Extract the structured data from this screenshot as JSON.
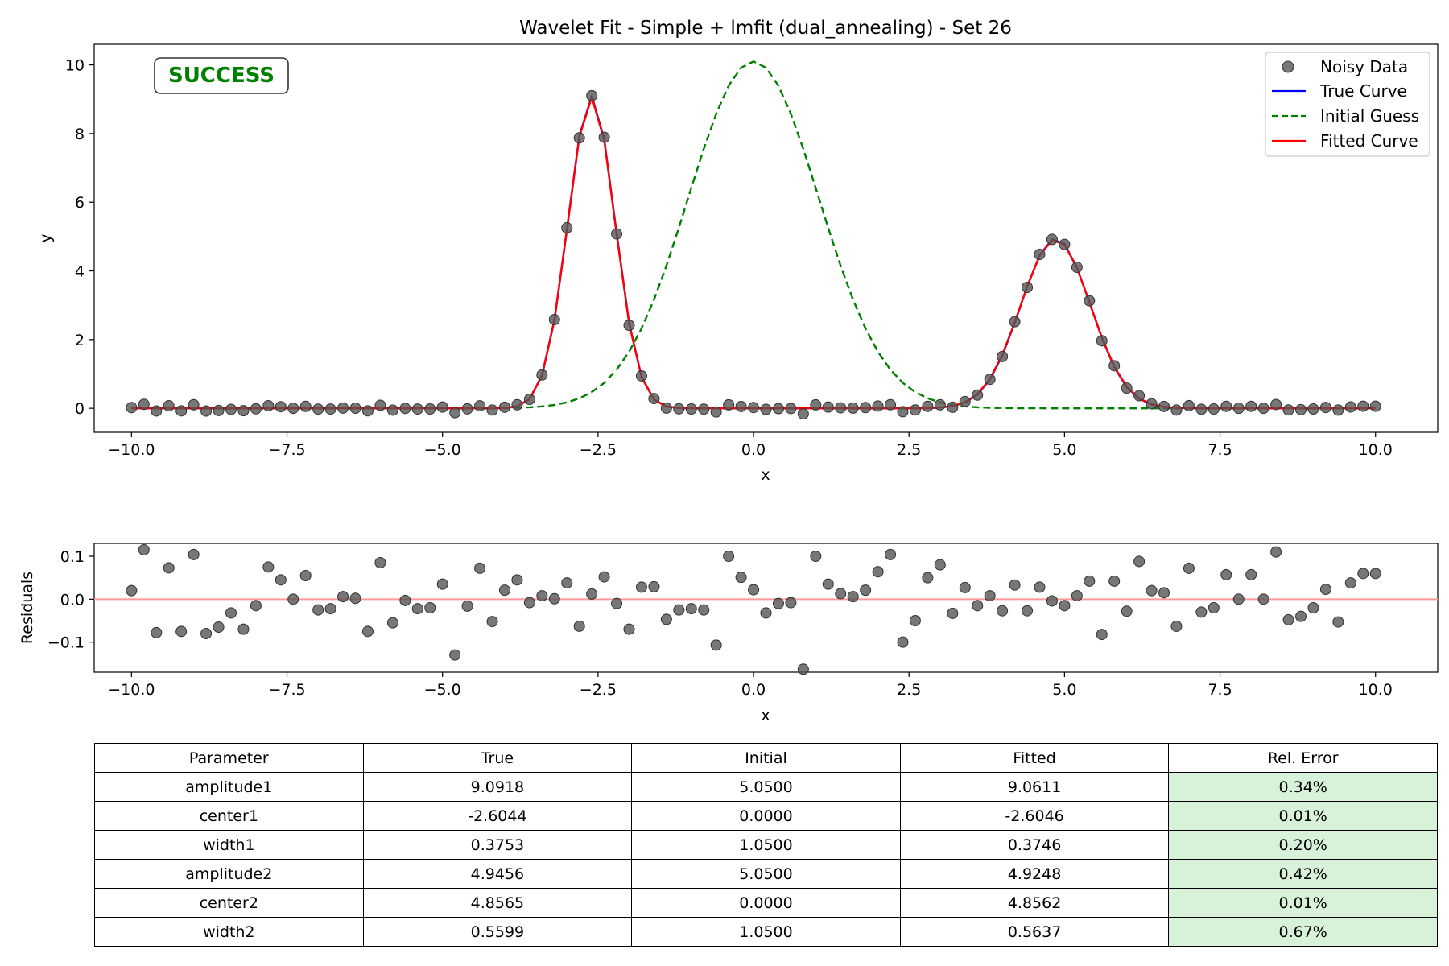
{
  "chart_data": [
    {
      "type": "scatter",
      "title": "Wavelet Fit - Simple + lmfit (dual_annealing) - Set 26",
      "xlabel": "x",
      "ylabel": "y",
      "xlim": [
        -10.6,
        11.0
      ],
      "ylim": [
        -0.7,
        10.6
      ],
      "xticks": [
        -10.0,
        -7.5,
        -5.0,
        -2.5,
        0.0,
        2.5,
        5.0,
        7.5,
        10.0
      ],
      "xtick_labels": [
        "−10.0",
        "−7.5",
        "−5.0",
        "−2.5",
        "0.0",
        "2.5",
        "5.0",
        "7.5",
        "10.0"
      ],
      "yticks": [
        0,
        2,
        4,
        6,
        8,
        10
      ],
      "ytick_labels": [
        "0",
        "2",
        "4",
        "6",
        "8",
        "10"
      ],
      "grid": false,
      "legend_position": "top-right",
      "annotation": {
        "text": "SUCCESS",
        "color": "#008000"
      },
      "series": [
        {
          "name": "Noisy Data",
          "kind": "points",
          "color": "#555555",
          "x_start": -10.0,
          "x_step": 0.2,
          "count": 101,
          "residuals": [
            0.02,
            0.115,
            -0.078,
            0.073,
            -0.075,
            0.104,
            -0.08,
            -0.065,
            -0.032,
            -0.07,
            -0.015,
            0.075,
            0.045,
            0.0,
            0.055,
            -0.025,
            -0.022,
            0.006,
            0.002,
            -0.075,
            0.085,
            -0.055,
            -0.003,
            -0.022,
            -0.02,
            0.035,
            -0.13,
            -0.016,
            0.072,
            -0.052,
            0.021,
            0.045,
            -0.008,
            0.008,
            0.001,
            0.038,
            -0.063,
            0.012,
            0.052,
            -0.01,
            -0.07,
            0.028,
            0.029,
            -0.047,
            -0.025,
            -0.022,
            -0.025,
            -0.107,
            0.1,
            0.051,
            0.022,
            -0.032,
            -0.01,
            -0.008,
            -0.163,
            0.1,
            0.035,
            0.013,
            0.006,
            0.021,
            0.064,
            0.104,
            -0.1,
            -0.05,
            0.05,
            0.08,
            -0.033,
            0.027,
            -0.015,
            0.008,
            -0.027,
            0.033,
            -0.027,
            0.028,
            -0.004,
            -0.015,
            0.008,
            0.042,
            -0.082,
            0.042,
            -0.028,
            0.088,
            0.02,
            0.015,
            -0.063,
            0.072,
            -0.03,
            -0.02,
            0.057,
            0.0,
            0.057,
            0.0,
            0.11,
            -0.048,
            -0.04,
            -0.02,
            0.023,
            -0.053,
            0.038,
            0.06,
            0.06
          ]
        },
        {
          "name": "True Curve",
          "kind": "line",
          "color": "#0000ff",
          "dash": "solid",
          "model": "gaussian_sum",
          "peaks": [
            {
              "amplitude": 9.0918,
              "center": -2.6044,
              "width": 0.3753
            },
            {
              "amplitude": 4.9456,
              "center": 4.8565,
              "width": 0.5599
            }
          ]
        },
        {
          "name": "Initial Guess",
          "kind": "line",
          "color": "#008000",
          "dash": "dashed",
          "model": "gaussian_sum",
          "peaks": [
            {
              "amplitude": 5.05,
              "center": 0.0,
              "width": 1.05
            },
            {
              "amplitude": 5.05,
              "center": 0.0,
              "width": 1.05
            }
          ]
        },
        {
          "name": "Fitted Curve",
          "kind": "line",
          "color": "#ff0000",
          "dash": "solid",
          "model": "gaussian_sum",
          "peaks": [
            {
              "amplitude": 9.0611,
              "center": -2.6046,
              "width": 0.3746
            },
            {
              "amplitude": 4.9248,
              "center": 4.8562,
              "width": 0.5637
            }
          ]
        }
      ]
    },
    {
      "type": "scatter",
      "title": "",
      "xlabel": "x",
      "ylabel": "Residuals",
      "xlim": [
        -10.6,
        11.0
      ],
      "ylim": [
        -0.17,
        0.13
      ],
      "xticks": [
        -10.0,
        -7.5,
        -5.0,
        -2.5,
        0.0,
        2.5,
        5.0,
        7.5,
        10.0
      ],
      "xtick_labels": [
        "−10.0",
        "−7.5",
        "−5.0",
        "−2.5",
        "0.0",
        "2.5",
        "5.0",
        "7.5",
        "10.0"
      ],
      "yticks": [
        0.1,
        0.0,
        -0.1
      ],
      "ytick_labels": [
        "0.1",
        "0.0",
        "−0.1"
      ],
      "grid": false,
      "reference_line": {
        "y": 0.0,
        "color": "#ff9999"
      },
      "points_from": "Noisy Data"
    },
    {
      "type": "table",
      "columns": [
        "Parameter",
        "True",
        "Initial",
        "Fitted",
        "Rel. Error"
      ],
      "rows": [
        [
          "amplitude1",
          "9.0918",
          "5.0500",
          "9.0611",
          "0.34%"
        ],
        [
          "center1",
          "-2.6044",
          "0.0000",
          "-2.6046",
          "0.01%"
        ],
        [
          "width1",
          "0.3753",
          "1.0500",
          "0.3746",
          "0.20%"
        ],
        [
          "amplitude2",
          "4.9456",
          "5.0500",
          "4.9248",
          "0.42%"
        ],
        [
          "center2",
          "4.8565",
          "0.0000",
          "4.8562",
          "0.01%"
        ],
        [
          "width2",
          "0.5599",
          "1.0500",
          "0.5637",
          "0.67%"
        ]
      ],
      "highlight_color": "#d8f2da"
    }
  ]
}
